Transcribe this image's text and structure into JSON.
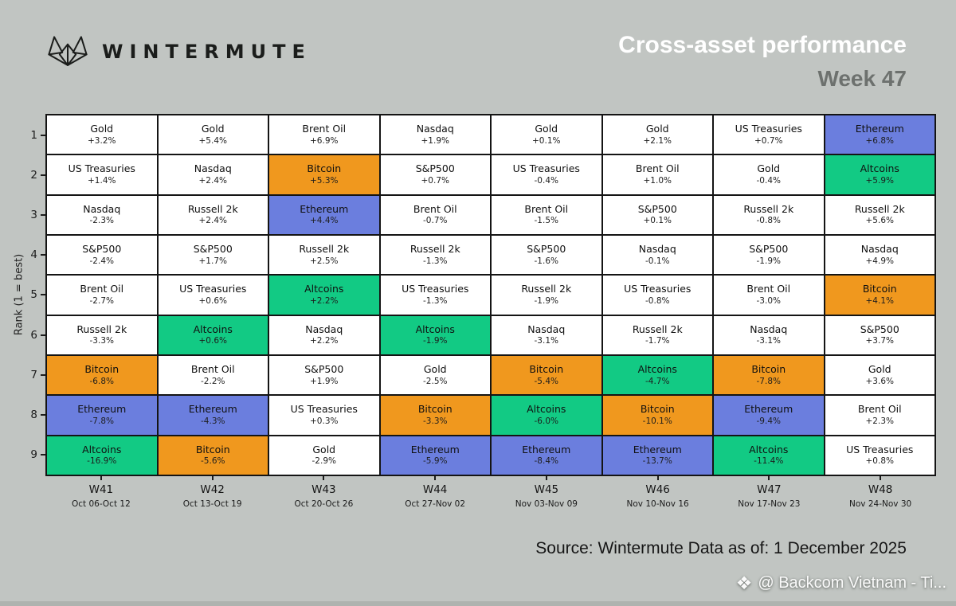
{
  "header": {
    "brand": "WINTERMUTE",
    "title": "Cross-asset performance",
    "subtitle": "Week 47"
  },
  "chart_data": {
    "type": "table",
    "description": "Weekly cross-asset performance ranking grid; rows are rank 1-9 (1 = best), columns are weeks W41-W48",
    "ylabel": "Rank (1 = best)",
    "rank_ticks": [
      "1",
      "2",
      "3",
      "4",
      "5",
      "6",
      "7",
      "8",
      "9"
    ],
    "default_cell_color": "#ffffff",
    "asset_colors": {
      "Bitcoin": "#f0981e",
      "Ethereum": "#6b7ede",
      "Altcoins": "#12ca84"
    },
    "weeks": [
      {
        "label": "W41",
        "dates": "Oct 06-Oct 12",
        "ranking": [
          {
            "name": "Gold",
            "value": "+3.2%"
          },
          {
            "name": "US Treasuries",
            "value": "+1.4%"
          },
          {
            "name": "Nasdaq",
            "value": "-2.3%"
          },
          {
            "name": "S&P500",
            "value": "-2.4%"
          },
          {
            "name": "Brent Oil",
            "value": "-2.7%"
          },
          {
            "name": "Russell 2k",
            "value": "-3.3%"
          },
          {
            "name": "Bitcoin",
            "value": "-6.8%"
          },
          {
            "name": "Ethereum",
            "value": "-7.8%"
          },
          {
            "name": "Altcoins",
            "value": "-16.9%"
          }
        ]
      },
      {
        "label": "W42",
        "dates": "Oct 13-Oct 19",
        "ranking": [
          {
            "name": "Gold",
            "value": "+5.4%"
          },
          {
            "name": "Nasdaq",
            "value": "+2.4%"
          },
          {
            "name": "Russell 2k",
            "value": "+2.4%"
          },
          {
            "name": "S&P500",
            "value": "+1.7%"
          },
          {
            "name": "US Treasuries",
            "value": "+0.6%"
          },
          {
            "name": "Altcoins",
            "value": "+0.6%"
          },
          {
            "name": "Brent Oil",
            "value": "-2.2%"
          },
          {
            "name": "Ethereum",
            "value": "-4.3%"
          },
          {
            "name": "Bitcoin",
            "value": "-5.6%"
          }
        ]
      },
      {
        "label": "W43",
        "dates": "Oct 20-Oct 26",
        "ranking": [
          {
            "name": "Brent Oil",
            "value": "+6.9%"
          },
          {
            "name": "Bitcoin",
            "value": "+5.3%"
          },
          {
            "name": "Ethereum",
            "value": "+4.4%"
          },
          {
            "name": "Russell 2k",
            "value": "+2.5%"
          },
          {
            "name": "Altcoins",
            "value": "+2.2%"
          },
          {
            "name": "Nasdaq",
            "value": "+2.2%"
          },
          {
            "name": "S&P500",
            "value": "+1.9%"
          },
          {
            "name": "US Treasuries",
            "value": "+0.3%"
          },
          {
            "name": "Gold",
            "value": "-2.9%"
          }
        ]
      },
      {
        "label": "W44",
        "dates": "Oct 27-Nov 02",
        "ranking": [
          {
            "name": "Nasdaq",
            "value": "+1.9%"
          },
          {
            "name": "S&P500",
            "value": "+0.7%"
          },
          {
            "name": "Brent Oil",
            "value": "-0.7%"
          },
          {
            "name": "Russell 2k",
            "value": "-1.3%"
          },
          {
            "name": "US Treasuries",
            "value": "-1.3%"
          },
          {
            "name": "Altcoins",
            "value": "-1.9%"
          },
          {
            "name": "Gold",
            "value": "-2.5%"
          },
          {
            "name": "Bitcoin",
            "value": "-3.3%"
          },
          {
            "name": "Ethereum",
            "value": "-5.9%"
          }
        ]
      },
      {
        "label": "W45",
        "dates": "Nov 03-Nov 09",
        "ranking": [
          {
            "name": "Gold",
            "value": "+0.1%"
          },
          {
            "name": "US Treasuries",
            "value": "-0.4%"
          },
          {
            "name": "Brent Oil",
            "value": "-1.5%"
          },
          {
            "name": "S&P500",
            "value": "-1.6%"
          },
          {
            "name": "Russell 2k",
            "value": "-1.9%"
          },
          {
            "name": "Nasdaq",
            "value": "-3.1%"
          },
          {
            "name": "Bitcoin",
            "value": "-5.4%"
          },
          {
            "name": "Altcoins",
            "value": "-6.0%"
          },
          {
            "name": "Ethereum",
            "value": "-8.4%"
          }
        ]
      },
      {
        "label": "W46",
        "dates": "Nov 10-Nov 16",
        "ranking": [
          {
            "name": "Gold",
            "value": "+2.1%"
          },
          {
            "name": "Brent Oil",
            "value": "+1.0%"
          },
          {
            "name": "S&P500",
            "value": "+0.1%"
          },
          {
            "name": "Nasdaq",
            "value": "-0.1%"
          },
          {
            "name": "US Treasuries",
            "value": "-0.8%"
          },
          {
            "name": "Russell 2k",
            "value": "-1.7%"
          },
          {
            "name": "Altcoins",
            "value": "-4.7%"
          },
          {
            "name": "Bitcoin",
            "value": "-10.1%"
          },
          {
            "name": "Ethereum",
            "value": "-13.7%"
          }
        ]
      },
      {
        "label": "W47",
        "dates": "Nov 17-Nov 23",
        "ranking": [
          {
            "name": "US Treasuries",
            "value": "+0.7%"
          },
          {
            "name": "Gold",
            "value": "-0.4%"
          },
          {
            "name": "Russell 2k",
            "value": "-0.8%"
          },
          {
            "name": "S&P500",
            "value": "-1.9%"
          },
          {
            "name": "Brent Oil",
            "value": "-3.0%"
          },
          {
            "name": "Nasdaq",
            "value": "-3.1%"
          },
          {
            "name": "Bitcoin",
            "value": "-7.8%"
          },
          {
            "name": "Ethereum",
            "value": "-9.4%"
          },
          {
            "name": "Altcoins",
            "value": "-11.4%"
          }
        ]
      },
      {
        "label": "W48",
        "dates": "Nov 24-Nov 30",
        "ranking": [
          {
            "name": "Ethereum",
            "value": "+6.8%"
          },
          {
            "name": "Altcoins",
            "value": "+5.9%"
          },
          {
            "name": "Russell 2k",
            "value": "+5.6%"
          },
          {
            "name": "Nasdaq",
            "value": "+4.9%"
          },
          {
            "name": "Bitcoin",
            "value": "+4.1%"
          },
          {
            "name": "S&P500",
            "value": "+3.7%"
          },
          {
            "name": "Gold",
            "value": "+3.6%"
          },
          {
            "name": "Brent Oil",
            "value": "+2.3%"
          },
          {
            "name": "US Treasuries",
            "value": "+0.8%"
          }
        ]
      }
    ]
  },
  "footer": {
    "source": "Source: Wintermute  Data as of: 1 December 2025",
    "watermark_icon": "❖",
    "watermark": "@ Backcom Vietnam - Ti..."
  },
  "colors": {
    "background": "#c1c5c2",
    "grid_line": "#141414",
    "title_text": "#ffffff",
    "subtitle_text": "#6d716e"
  }
}
